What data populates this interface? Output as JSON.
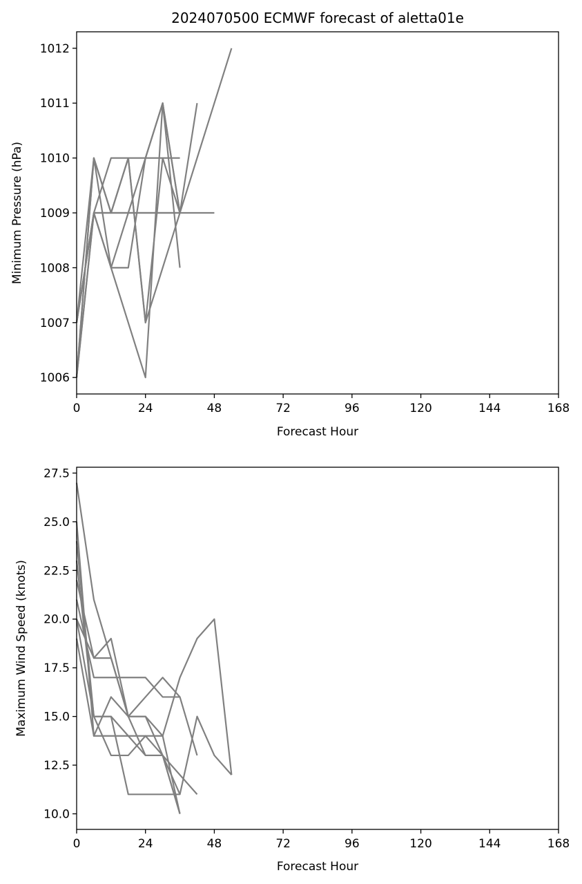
{
  "chart_data": [
    {
      "type": "line",
      "title": "2024070500 ECMWF forecast of aletta01e",
      "xlabel": "Forecast Hour",
      "ylabel": "Minimum Pressure (hPa)",
      "xlim": [
        0,
        168
      ],
      "ylim": [
        1005.7,
        1012.3
      ],
      "xticks": [
        0,
        24,
        48,
        72,
        96,
        120,
        144,
        168
      ],
      "yticks": [
        1006,
        1007,
        1008,
        1009,
        1010,
        1011,
        1012
      ],
      "grid": false,
      "line_color": "#808080",
      "series": [
        {
          "x": [
            0,
            6,
            12,
            18,
            24,
            30,
            36,
            42
          ],
          "y": [
            1006,
            1010,
            1008,
            1008,
            1010,
            1011,
            1009,
            1011
          ]
        },
        {
          "x": [
            0,
            6,
            12,
            18,
            24,
            30,
            36,
            42,
            48,
            54
          ],
          "y": [
            1007,
            1009,
            1009,
            1009,
            1009,
            1009,
            1009,
            1010,
            1011,
            1012
          ]
        },
        {
          "x": [
            0,
            6,
            12,
            18,
            24,
            30,
            36
          ],
          "y": [
            1006,
            1009,
            1010,
            1010,
            1010,
            1010,
            1010
          ]
        },
        {
          "x": [
            0,
            6,
            12,
            18,
            24,
            30,
            36
          ],
          "y": [
            1006,
            1010,
            1009,
            1010,
            1007,
            1008,
            1009
          ]
        },
        {
          "x": [
            0,
            6,
            12,
            18,
            24,
            30,
            36,
            42,
            48
          ],
          "y": [
            1007,
            1009,
            1009,
            1009,
            1009,
            1009,
            1009,
            1009,
            1009
          ]
        },
        {
          "x": [
            0,
            6,
            12,
            18,
            24,
            30,
            36
          ],
          "y": [
            1007,
            1009,
            1008,
            1009,
            1010,
            1011,
            1008
          ]
        },
        {
          "x": [
            0,
            6,
            12,
            18,
            24,
            30,
            36
          ],
          "y": [
            1006,
            1009,
            1008,
            1007,
            1006,
            1011,
            1009
          ]
        },
        {
          "x": [
            0,
            6,
            12,
            18,
            24,
            30,
            36
          ],
          "y": [
            1007,
            1010,
            1009,
            1010,
            1007,
            1010,
            1009
          ]
        }
      ]
    },
    {
      "type": "line",
      "title": "",
      "xlabel": "Forecast Hour",
      "ylabel": "Maximum Wind Speed (knots)",
      "xlim": [
        0,
        168
      ],
      "ylim": [
        9.2,
        27.8
      ],
      "xticks": [
        0,
        24,
        48,
        72,
        96,
        120,
        144,
        168
      ],
      "yticks": [
        10.0,
        12.5,
        15.0,
        17.5,
        20.0,
        22.5,
        25.0,
        27.5
      ],
      "ytick_labels": [
        "10.0",
        "12.5",
        "15.0",
        "17.5",
        "20.0",
        "22.5",
        "25.0",
        "27.5"
      ],
      "grid": false,
      "line_color": "#808080",
      "series": [
        {
          "x": [
            0,
            6,
            12,
            18,
            24,
            30,
            36
          ],
          "y": [
            27,
            21,
            18,
            15,
            15,
            14,
            10
          ]
        },
        {
          "x": [
            0,
            6,
            12,
            18,
            24,
            30,
            36,
            42,
            48,
            54
          ],
          "y": [
            25,
            14,
            14,
            14,
            14,
            14,
            17,
            19,
            20,
            12
          ]
        },
        {
          "x": [
            0,
            6,
            12,
            18,
            24,
            30,
            36,
            42
          ],
          "y": [
            24,
            15,
            13,
            13,
            14,
            13,
            12,
            11
          ]
        },
        {
          "x": [
            0,
            6,
            12,
            18,
            24,
            30,
            36,
            42
          ],
          "y": [
            22,
            18,
            18,
            15,
            16,
            17,
            16,
            13
          ]
        },
        {
          "x": [
            0,
            6,
            12,
            18,
            24,
            30,
            36
          ],
          "y": [
            21,
            17,
            17,
            17,
            17,
            16,
            16
          ]
        },
        {
          "x": [
            0,
            6,
            12,
            18,
            24,
            30,
            36,
            42,
            48,
            54
          ],
          "y": [
            20,
            15,
            15,
            11,
            11,
            11,
            11,
            15,
            13,
            12
          ]
        },
        {
          "x": [
            0,
            6,
            12,
            18,
            24,
            30,
            36
          ],
          "y": [
            19,
            14,
            16,
            15,
            15,
            13,
            10
          ]
        },
        {
          "x": [
            0,
            6,
            12,
            18,
            24,
            30,
            36
          ],
          "y": [
            20,
            18,
            19,
            15,
            13,
            13,
            11
          ]
        },
        {
          "x": [
            0,
            6,
            12,
            18,
            24,
            30,
            36
          ],
          "y": [
            23,
            15,
            15,
            14,
            13,
            13,
            10
          ]
        }
      ]
    }
  ]
}
